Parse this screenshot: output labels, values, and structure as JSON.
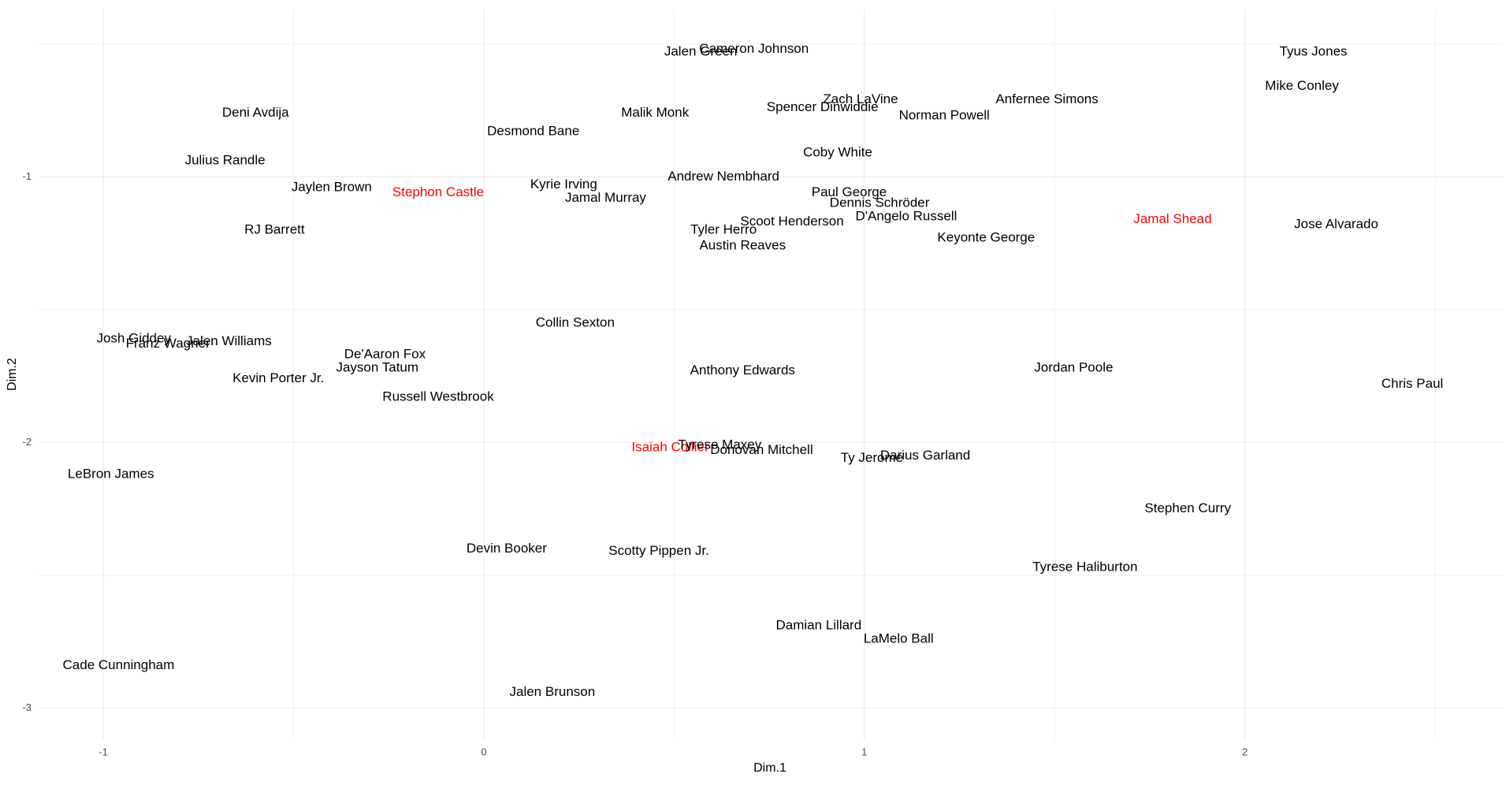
{
  "chart_data": {
    "type": "scatter",
    "x_label": "Dim.1",
    "y_label": "Dim.2",
    "xlim": [
      -1.17,
      2.68
    ],
    "ylim": [
      -3.12,
      -0.37
    ],
    "xticks": [
      -1,
      0,
      1,
      2
    ],
    "yticks": [
      -1,
      -2,
      -3
    ],
    "grid": true,
    "labels": [
      "Cameron Johnson",
      "Jalen Green",
      "Tyus Jones",
      "Mike Conley",
      "Deni Avdija",
      "Malik Monk",
      "Zach LaVine",
      "Spencer Dinwiddie",
      "Anfernee Simons",
      "Norman Powell",
      "Desmond Bane",
      "Coby White",
      "Julius Randle",
      "Andrew Nembhard",
      "Jaylen Brown",
      "Kyrie Irving",
      "Stephon Castle",
      "Paul George",
      "Jamal Murray",
      "Dennis Schröder",
      "D'Angelo Russell",
      "Jamal Shead",
      "Jose Alvarado",
      "Scoot Henderson",
      "Tyler Herro",
      "RJ Barrett",
      "Keyonte George",
      "Austin Reaves",
      "Collin Sexton",
      "Josh Giddey",
      "Jalen Williams",
      "Franz Wagner",
      "De'Aaron Fox",
      "Jayson Tatum",
      "Kevin Porter Jr.",
      "Anthony Edwards",
      "Jordan Poole",
      "Chris Paul",
      "Russell Westbrook",
      "Isaiah Collier",
      "Tyrese Maxey",
      "Donovan Mitchell",
      "Ty Jerome",
      "Darius Garland",
      "LeBron James",
      "Stephen Curry",
      "Devin Booker",
      "Scotty Pippen Jr.",
      "Tyrese Haliburton",
      "Damian Lillard",
      "LaMelo Ball",
      "Cade Cunningham",
      "Jalen Brunson"
    ],
    "x": [
      0.71,
      0.57,
      2.18,
      2.15,
      -0.6,
      0.45,
      0.99,
      0.89,
      1.48,
      1.21,
      0.13,
      0.93,
      -0.68,
      0.63,
      -0.4,
      0.21,
      -0.12,
      0.96,
      0.32,
      1.04,
      1.11,
      1.81,
      2.24,
      0.81,
      0.63,
      -0.55,
      1.32,
      0.68,
      0.24,
      -0.92,
      -0.67,
      -0.83,
      -0.26,
      -0.28,
      -0.54,
      0.68,
      1.55,
      2.44,
      -0.12,
      0.49,
      0.62,
      0.73,
      1.02,
      1.16,
      -0.98,
      1.85,
      0.06,
      0.46,
      1.58,
      0.88,
      1.09,
      -0.96,
      0.18
    ],
    "values": [
      -0.52,
      -0.53,
      -0.53,
      -0.66,
      -0.76,
      -0.76,
      -0.71,
      -0.74,
      -0.71,
      -0.77,
      -0.83,
      -0.91,
      -0.94,
      -1.0,
      -1.04,
      -1.03,
      -1.06,
      -1.06,
      -1.08,
      -1.1,
      -1.15,
      -1.16,
      -1.18,
      -1.17,
      -1.2,
      -1.2,
      -1.23,
      -1.26,
      -1.55,
      -1.61,
      -1.62,
      -1.63,
      -1.67,
      -1.72,
      -1.76,
      -1.73,
      -1.72,
      -1.78,
      -1.83,
      -2.02,
      -2.01,
      -2.03,
      -2.06,
      -2.05,
      -2.12,
      -2.25,
      -2.4,
      -2.41,
      -2.47,
      -2.69,
      -2.74,
      -2.84,
      -2.94
    ],
    "colors": [
      "#000000",
      "#000000",
      "#000000",
      "#000000",
      "#000000",
      "#000000",
      "#000000",
      "#000000",
      "#000000",
      "#000000",
      "#000000",
      "#000000",
      "#000000",
      "#000000",
      "#000000",
      "#000000",
      "#ff0000",
      "#000000",
      "#000000",
      "#000000",
      "#000000",
      "#ff0000",
      "#000000",
      "#000000",
      "#000000",
      "#000000",
      "#000000",
      "#000000",
      "#000000",
      "#000000",
      "#000000",
      "#000000",
      "#000000",
      "#000000",
      "#000000",
      "#000000",
      "#000000",
      "#000000",
      "#000000",
      "#ff0000",
      "#000000",
      "#000000",
      "#000000",
      "#000000",
      "#000000",
      "#000000",
      "#000000",
      "#000000",
      "#000000",
      "#000000",
      "#000000",
      "#000000",
      "#000000"
    ]
  }
}
